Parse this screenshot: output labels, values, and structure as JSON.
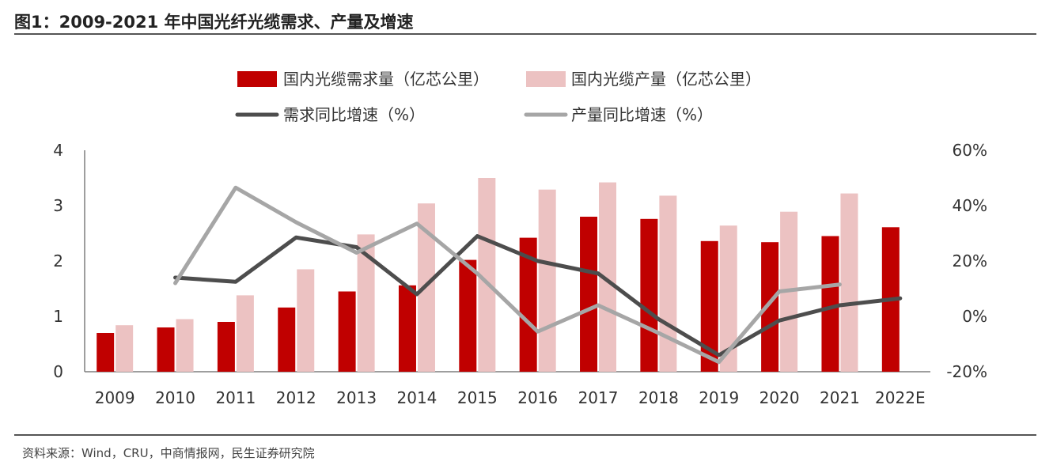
{
  "header": {
    "title": "图1：2009-2021 年中国光纤光缆需求、产量及增速"
  },
  "footer": {
    "source": "资料来源：Wind，CRU，中商情报网，民生证券研究院"
  },
  "chart_data": {
    "type": "bar+line",
    "categories": [
      "2009",
      "2010",
      "2011",
      "2012",
      "2013",
      "2014",
      "2015",
      "2016",
      "2017",
      "2018",
      "2019",
      "2020",
      "2021",
      "2022E"
    ],
    "left_axis": {
      "ylim": [
        0,
        4
      ],
      "ticks": [
        "0",
        "1",
        "2",
        "3",
        "4"
      ]
    },
    "right_axis": {
      "ylim": [
        -20,
        60
      ],
      "ticks": [
        "-20%",
        "0%",
        "20%",
        "40%",
        "60%"
      ]
    },
    "series": [
      {
        "name": "国内光缆需求量（亿芯公里）",
        "kind": "bar",
        "axis": "left",
        "color": "#c00000",
        "values": [
          0.7,
          0.8,
          0.9,
          1.16,
          1.45,
          1.56,
          2.02,
          2.42,
          2.8,
          2.76,
          2.36,
          2.34,
          2.45,
          2.61
        ]
      },
      {
        "name": "国内光缆产量（亿芯公里）",
        "kind": "bar",
        "axis": "left",
        "color": "#ecc2c2",
        "values": [
          0.84,
          0.95,
          1.38,
          1.85,
          2.48,
          3.04,
          3.5,
          3.29,
          3.42,
          3.18,
          2.64,
          2.89,
          3.22,
          null
        ]
      },
      {
        "name": "需求同比增速（%）",
        "kind": "line",
        "axis": "right",
        "color": "#4d4d4d",
        "values": [
          null,
          14,
          12.5,
          28.5,
          25,
          8,
          29,
          20,
          15.5,
          -1,
          -14,
          -1.5,
          4,
          6.5
        ]
      },
      {
        "name": "产量同比增速（%）",
        "kind": "line",
        "axis": "right",
        "color": "#a6a6a6",
        "values": [
          null,
          12,
          46.5,
          34,
          23,
          33.5,
          15.5,
          -5.5,
          4,
          -6,
          -16.5,
          9,
          11.5,
          null
        ]
      }
    ]
  }
}
